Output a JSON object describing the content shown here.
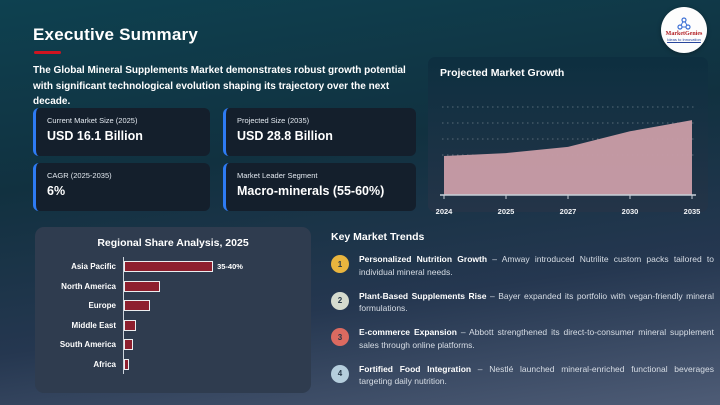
{
  "header": {
    "title": "Executive Summary",
    "underline_color": "#cf1420",
    "logo": {
      "name": "MarketGenies",
      "tagline": "Ideas to Innovation",
      "icon": "molecule-icon",
      "name_color": "#b32025",
      "tagline_color": "#27459c"
    }
  },
  "intro": "The Global Mineral Supplements Market demonstrates robust growth potential with significant technological evolution shaping its trajectory over the next decade.",
  "stats": [
    {
      "label": "Current Market Size (2025)",
      "value": "USD 16.1 Billion"
    },
    {
      "label": "Projected Size (2035)",
      "value": "USD 28.8 Billion"
    },
    {
      "label": "CAGR (2025-2035)",
      "value": "6%"
    },
    {
      "label": "Market Leader Segment",
      "value": "Macro-minerals (55-60%)"
    }
  ],
  "chart_data": [
    {
      "type": "area",
      "title": "Projected Market Growth",
      "x": [
        "2024",
        "2025",
        "2027",
        "2030",
        "2035"
      ],
      "values": [
        15.0,
        16.1,
        18.5,
        24.5,
        28.8
      ],
      "unit": "USD Billion",
      "ylim": [
        0,
        40
      ],
      "grid": "dotted-horizontal, no y-axis labels",
      "fill_color": "#c99ca7",
      "legend": "none"
    },
    {
      "type": "bar",
      "title": "Regional Share Analysis, 2025",
      "orientation": "horizontal",
      "categories": [
        "Asia Pacific",
        "North America",
        "Europe",
        "Middle East",
        "South America",
        "Africa"
      ],
      "values": [
        37.5,
        15,
        11,
        5,
        3.6,
        2
      ],
      "unit": "% share",
      "xlim": [
        0,
        40
      ],
      "data_labels": [
        "35-40%",
        "",
        "",
        "",
        "",
        ""
      ],
      "bar_color": "#8e1f2e",
      "legend": "none"
    }
  ],
  "trends": {
    "heading": "Key Market Trends",
    "items": [
      {
        "num": "1",
        "color": "#e9b53e",
        "title": "Personalized Nutrition Growth",
        "desc": "– Amway introduced Nutrilite custom packs tailored to individual mineral needs."
      },
      {
        "num": "2",
        "color": "#d5dbce",
        "title": "Plant-Based Supplements Rise",
        "desc": "– Bayer expanded its portfolio with vegan-friendly mineral formulations."
      },
      {
        "num": "3",
        "color": "#dc6a60",
        "title": "E-commerce Expansion",
        "desc": "– Abbott strengthened its direct-to-consumer mineral supplement sales through online platforms."
      },
      {
        "num": "4",
        "color": "#b5cedd",
        "title": "Fortified Food Integration",
        "desc": "– Nestlé launched mineral-enriched functional beverages targeting daily nutrition."
      }
    ]
  }
}
